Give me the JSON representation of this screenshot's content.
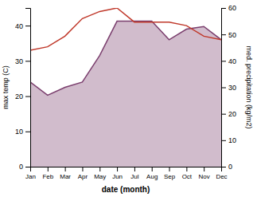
{
  "chart_data": {
    "type": "line",
    "categories": [
      "Jan",
      "Feb",
      "Mar",
      "Apr",
      "May",
      "Jun",
      "Jul",
      "Aug",
      "Sep",
      "Oct",
      "Nov",
      "Dec"
    ],
    "xlabel": "date (month)",
    "ylabel": "max temp (C)",
    "y2label": "med. precipitation (kg/m2)",
    "ylim": [
      0,
      45
    ],
    "yticks": [
      0,
      10,
      20,
      30,
      40
    ],
    "y2lim": [
      0,
      60
    ],
    "y2ticks": [
      0,
      10,
      20,
      30,
      40,
      50,
      60
    ],
    "series": [
      {
        "type": "area",
        "axis": "y2",
        "color": "#7b3f6e",
        "values": [
          32,
          27,
          30,
          32,
          42,
          55,
          55,
          55,
          48,
          52,
          53,
          48
        ]
      },
      {
        "type": "line",
        "color": "#c0392b",
        "values": [
          33,
          34,
          37,
          42,
          44,
          45,
          41,
          41,
          41,
          40,
          37,
          36
        ]
      }
    ]
  }
}
